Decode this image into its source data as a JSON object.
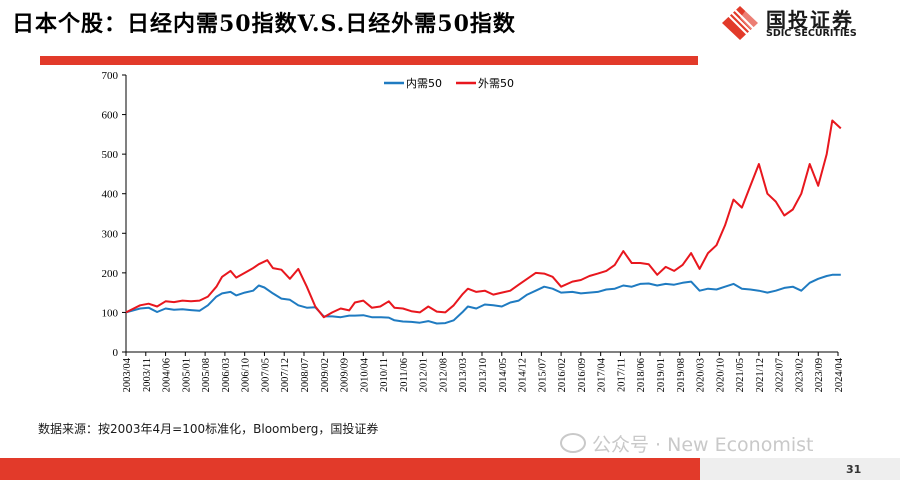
{
  "header": {
    "title": "日本个股：日经内需50指数V.S.日经外需50指数"
  },
  "logo": {
    "name_cn": "国投证券",
    "name_en": "SDIC SECURITIES"
  },
  "colors": {
    "accent_red": "#e23a2a",
    "domestic": "#1f7bc1",
    "foreign": "#e8171e"
  },
  "footer": {
    "source": "数据来源：按2003年4月=100标准化，Bloomberg，国投证券",
    "watermark": "公众号 · New Economist",
    "page": "31"
  },
  "chart_data": {
    "type": "line",
    "title": "",
    "xlabel": "",
    "ylabel": "",
    "ylim": [
      0,
      700
    ],
    "yticks": [
      0,
      100,
      200,
      300,
      400,
      500,
      600,
      700
    ],
    "legend": "top-center",
    "grid": false,
    "x_tick_labels": [
      "2003/04",
      "2003/11",
      "2004/06",
      "2005/01",
      "2005/08",
      "2006/03",
      "2006/10",
      "2007/05",
      "2007/12",
      "2008/07",
      "2009/02",
      "2009/09",
      "2010/04",
      "2010/11",
      "2011/06",
      "2012/01",
      "2012/08",
      "2013/03",
      "2013/10",
      "2014/05",
      "2014/12",
      "2015/07",
      "2016/02",
      "2016/09",
      "2017/04",
      "2017/11",
      "2018/06",
      "2019/01",
      "2019/08",
      "2020/03",
      "2020/10",
      "2021/05",
      "2021/12",
      "2022/07",
      "2023/02",
      "2023/09",
      "2024/04"
    ],
    "series": [
      {
        "name": "内需50",
        "color": "#1f7bc1",
        "points": [
          [
            "2003/04",
            100
          ],
          [
            "2003/09",
            110
          ],
          [
            "2003/12",
            112
          ],
          [
            "2004/03",
            101
          ],
          [
            "2004/06",
            110
          ],
          [
            "2004/09",
            107
          ],
          [
            "2004/12",
            108
          ],
          [
            "2005/03",
            106
          ],
          [
            "2005/06",
            104
          ],
          [
            "2005/09",
            118
          ],
          [
            "2005/12",
            140
          ],
          [
            "2006/02",
            148
          ],
          [
            "2006/05",
            152
          ],
          [
            "2006/07",
            143
          ],
          [
            "2006/10",
            150
          ],
          [
            "2007/01",
            155
          ],
          [
            "2007/03",
            168
          ],
          [
            "2007/05",
            163
          ],
          [
            "2007/08",
            148
          ],
          [
            "2007/11",
            135
          ],
          [
            "2008/02",
            132
          ],
          [
            "2008/05",
            118
          ],
          [
            "2008/08",
            112
          ],
          [
            "2008/11",
            113
          ],
          [
            "2009/02",
            90
          ],
          [
            "2009/05",
            90
          ],
          [
            "2009/08",
            88
          ],
          [
            "2009/11",
            92
          ],
          [
            "2010/01",
            92
          ],
          [
            "2010/04",
            93
          ],
          [
            "2010/07",
            88
          ],
          [
            "2010/10",
            88
          ],
          [
            "2011/01",
            87
          ],
          [
            "2011/03",
            80
          ],
          [
            "2011/06",
            77
          ],
          [
            "2011/09",
            76
          ],
          [
            "2011/12",
            74
          ],
          [
            "2012/03",
            78
          ],
          [
            "2012/06",
            72
          ],
          [
            "2012/09",
            73
          ],
          [
            "2012/12",
            80
          ],
          [
            "2013/03",
            100
          ],
          [
            "2013/05",
            115
          ],
          [
            "2013/08",
            110
          ],
          [
            "2013/11",
            120
          ],
          [
            "2014/02",
            118
          ],
          [
            "2014/05",
            115
          ],
          [
            "2014/08",
            125
          ],
          [
            "2014/11",
            130
          ],
          [
            "2015/02",
            145
          ],
          [
            "2015/05",
            155
          ],
          [
            "2015/08",
            165
          ],
          [
            "2015/11",
            160
          ],
          [
            "2016/02",
            150
          ],
          [
            "2016/06",
            152
          ],
          [
            "2016/09",
            148
          ],
          [
            "2016/12",
            150
          ],
          [
            "2017/03",
            152
          ],
          [
            "2017/06",
            158
          ],
          [
            "2017/09",
            160
          ],
          [
            "2017/12",
            168
          ],
          [
            "2018/03",
            165
          ],
          [
            "2018/06",
            172
          ],
          [
            "2018/09",
            173
          ],
          [
            "2018/12",
            168
          ],
          [
            "2019/03",
            172
          ],
          [
            "2019/06",
            170
          ],
          [
            "2019/09",
            175
          ],
          [
            "2019/12",
            178
          ],
          [
            "2020/03",
            155
          ],
          [
            "2020/06",
            160
          ],
          [
            "2020/09",
            158
          ],
          [
            "2020/12",
            165
          ],
          [
            "2021/03",
            172
          ],
          [
            "2021/06",
            160
          ],
          [
            "2021/09",
            158
          ],
          [
            "2021/12",
            155
          ],
          [
            "2022/03",
            150
          ],
          [
            "2022/06",
            155
          ],
          [
            "2022/09",
            162
          ],
          [
            "2022/12",
            165
          ],
          [
            "2023/03",
            155
          ],
          [
            "2023/06",
            175
          ],
          [
            "2023/09",
            185
          ],
          [
            "2023/12",
            192
          ],
          [
            "2024/02",
            195
          ],
          [
            "2024/05",
            195
          ]
        ]
      },
      {
        "name": "外需50",
        "color": "#e8171e",
        "points": [
          [
            "2003/04",
            100
          ],
          [
            "2003/09",
            118
          ],
          [
            "2003/12",
            122
          ],
          [
            "2004/03",
            115
          ],
          [
            "2004/06",
            128
          ],
          [
            "2004/09",
            126
          ],
          [
            "2004/12",
            130
          ],
          [
            "2005/03",
            128
          ],
          [
            "2005/06",
            130
          ],
          [
            "2005/09",
            140
          ],
          [
            "2005/12",
            165
          ],
          [
            "2006/02",
            190
          ],
          [
            "2006/05",
            205
          ],
          [
            "2006/07",
            188
          ],
          [
            "2006/10",
            200
          ],
          [
            "2007/01",
            212
          ],
          [
            "2007/03",
            222
          ],
          [
            "2007/06",
            232
          ],
          [
            "2007/08",
            212
          ],
          [
            "2007/11",
            208
          ],
          [
            "2008/02",
            185
          ],
          [
            "2008/05",
            210
          ],
          [
            "2008/08",
            165
          ],
          [
            "2008/11",
            115
          ],
          [
            "2009/02",
            88
          ],
          [
            "2009/05",
            100
          ],
          [
            "2009/08",
            110
          ],
          [
            "2009/11",
            105
          ],
          [
            "2010/01",
            125
          ],
          [
            "2010/04",
            130
          ],
          [
            "2010/07",
            112
          ],
          [
            "2010/10",
            115
          ],
          [
            "2011/01",
            128
          ],
          [
            "2011/03",
            112
          ],
          [
            "2011/06",
            110
          ],
          [
            "2011/09",
            103
          ],
          [
            "2011/12",
            100
          ],
          [
            "2012/03",
            115
          ],
          [
            "2012/06",
            102
          ],
          [
            "2012/09",
            100
          ],
          [
            "2012/12",
            118
          ],
          [
            "2013/03",
            145
          ],
          [
            "2013/05",
            160
          ],
          [
            "2013/08",
            152
          ],
          [
            "2013/11",
            155
          ],
          [
            "2014/02",
            145
          ],
          [
            "2014/05",
            150
          ],
          [
            "2014/08",
            155
          ],
          [
            "2014/11",
            170
          ],
          [
            "2015/02",
            185
          ],
          [
            "2015/05",
            200
          ],
          [
            "2015/08",
            198
          ],
          [
            "2015/11",
            190
          ],
          [
            "2016/02",
            165
          ],
          [
            "2016/06",
            178
          ],
          [
            "2016/09",
            182
          ],
          [
            "2016/12",
            192
          ],
          [
            "2017/03",
            198
          ],
          [
            "2017/06",
            205
          ],
          [
            "2017/09",
            220
          ],
          [
            "2017/12",
            255
          ],
          [
            "2018/03",
            225
          ],
          [
            "2018/06",
            225
          ],
          [
            "2018/09",
            222
          ],
          [
            "2018/12",
            195
          ],
          [
            "2019/03",
            215
          ],
          [
            "2019/06",
            205
          ],
          [
            "2019/09",
            220
          ],
          [
            "2019/12",
            250
          ],
          [
            "2020/03",
            210
          ],
          [
            "2020/06",
            250
          ],
          [
            "2020/09",
            270
          ],
          [
            "2020/12",
            320
          ],
          [
            "2021/03",
            385
          ],
          [
            "2021/06",
            365
          ],
          [
            "2021/09",
            420
          ],
          [
            "2021/12",
            475
          ],
          [
            "2022/03",
            400
          ],
          [
            "2022/06",
            380
          ],
          [
            "2022/09",
            345
          ],
          [
            "2022/12",
            360
          ],
          [
            "2023/03",
            400
          ],
          [
            "2023/06",
            475
          ],
          [
            "2023/09",
            420
          ],
          [
            "2023/12",
            500
          ],
          [
            "2024/02",
            585
          ],
          [
            "2024/05",
            565
          ]
        ]
      }
    ]
  }
}
